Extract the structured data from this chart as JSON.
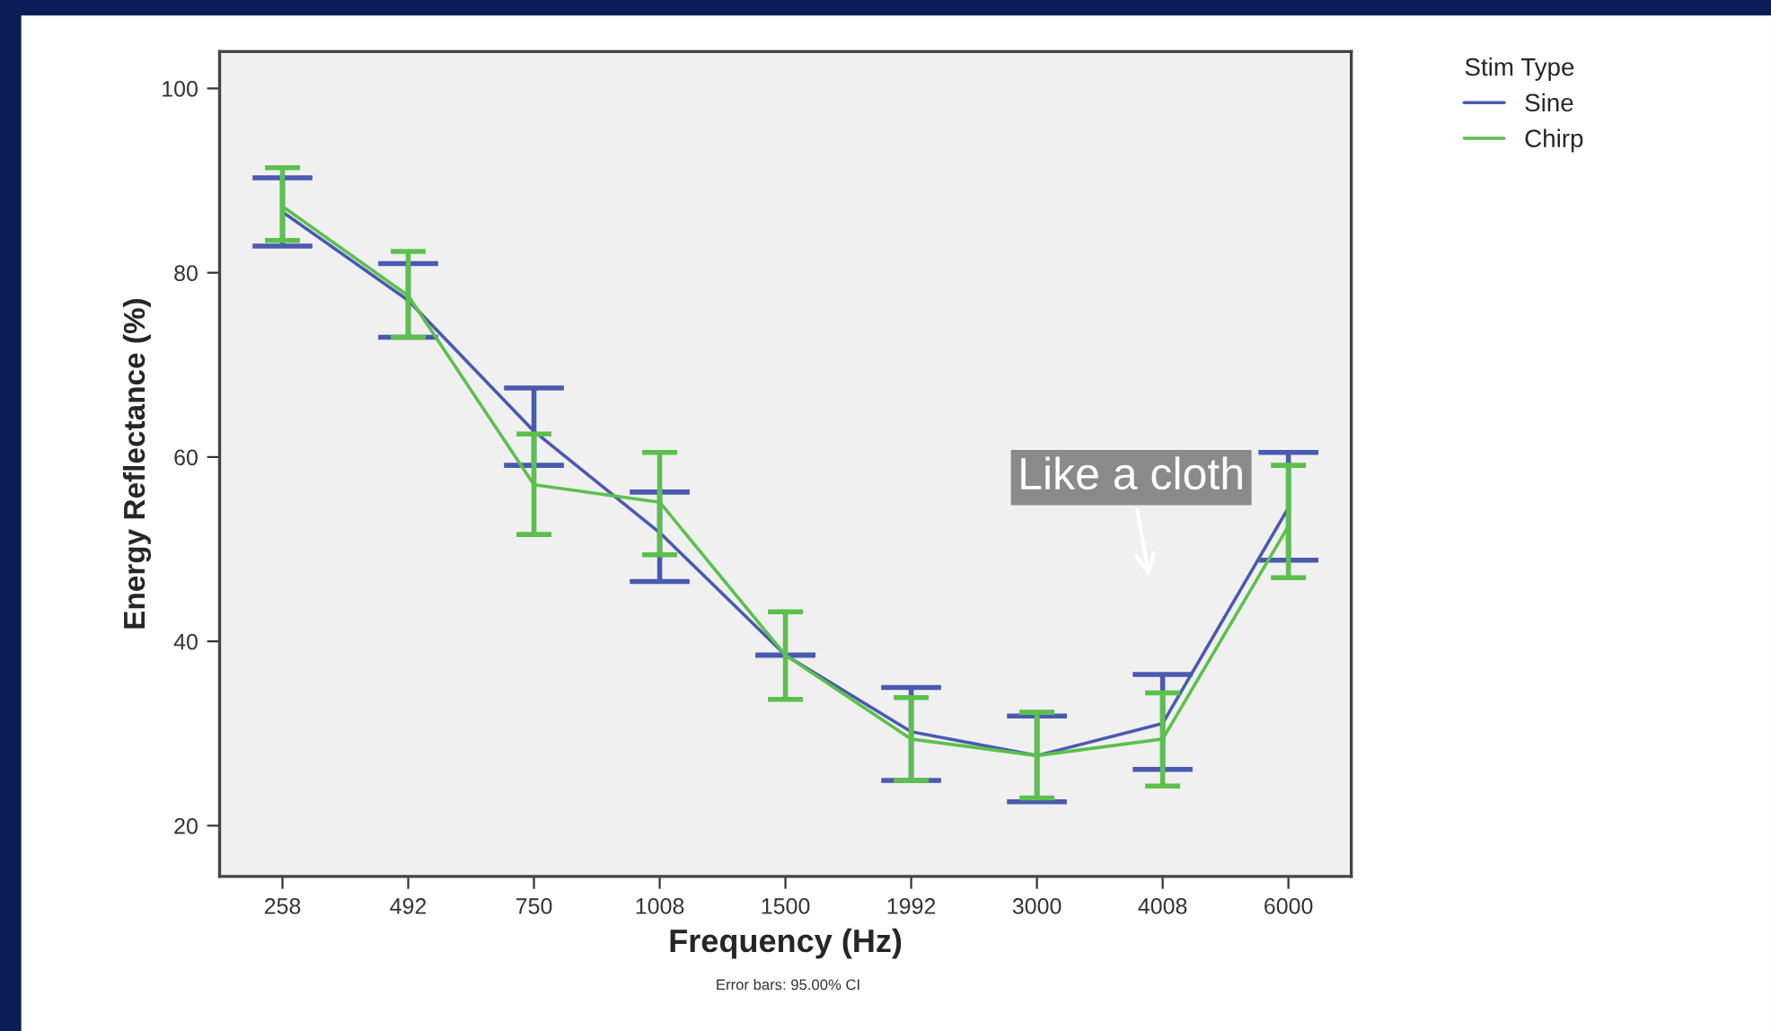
{
  "chart_data": {
    "type": "line",
    "xlabel": "Frequency (Hz)",
    "ylabel": "Energy Reflectance (%)",
    "legend_title": "Stim Type",
    "categories": [
      "258",
      "492",
      "750",
      "1008",
      "1500",
      "1992",
      "3000",
      "4008",
      "6000"
    ],
    "series": [
      {
        "name": "Sine",
        "color": "#4a5ab0",
        "values": [
          86.6,
          77,
          62.8,
          51.8,
          38.5,
          30.2,
          27.6,
          31.1,
          54.5
        ],
        "errors": [
          [
            82.9,
            90.3
          ],
          [
            73,
            81
          ],
          [
            59.1,
            67.5
          ],
          [
            46.5,
            56.2
          ],
          null,
          [
            24.9,
            35.0
          ],
          [
            22.6,
            31.9
          ],
          [
            26.1,
            36.4
          ],
          [
            48.8,
            60.5
          ]
        ]
      },
      {
        "name": "Chirp",
        "color": "#5cc04c",
        "values": [
          87.2,
          77.5,
          57,
          55.1,
          38.5,
          29.4,
          27.6,
          29.4,
          52.5
        ],
        "errors": [
          [
            83.5,
            91.4
          ],
          [
            73,
            82.3
          ],
          [
            51.6,
            62.5
          ],
          [
            49.4,
            60.5
          ],
          [
            33.7,
            43.2
          ],
          [
            24.9,
            33.9
          ],
          [
            23.0,
            32.3
          ],
          [
            24.3,
            34.4
          ],
          [
            46.9,
            59.1
          ]
        ]
      }
    ],
    "ylim": [
      14.5,
      104
    ],
    "yticks": [
      20,
      40,
      60,
      80,
      100
    ],
    "grid": false,
    "legend": "top right",
    "marker": "none",
    "line_style": "solid",
    "annotations": [
      "Like a cloth",
      "Error bars: 95.00% CI"
    ]
  }
}
